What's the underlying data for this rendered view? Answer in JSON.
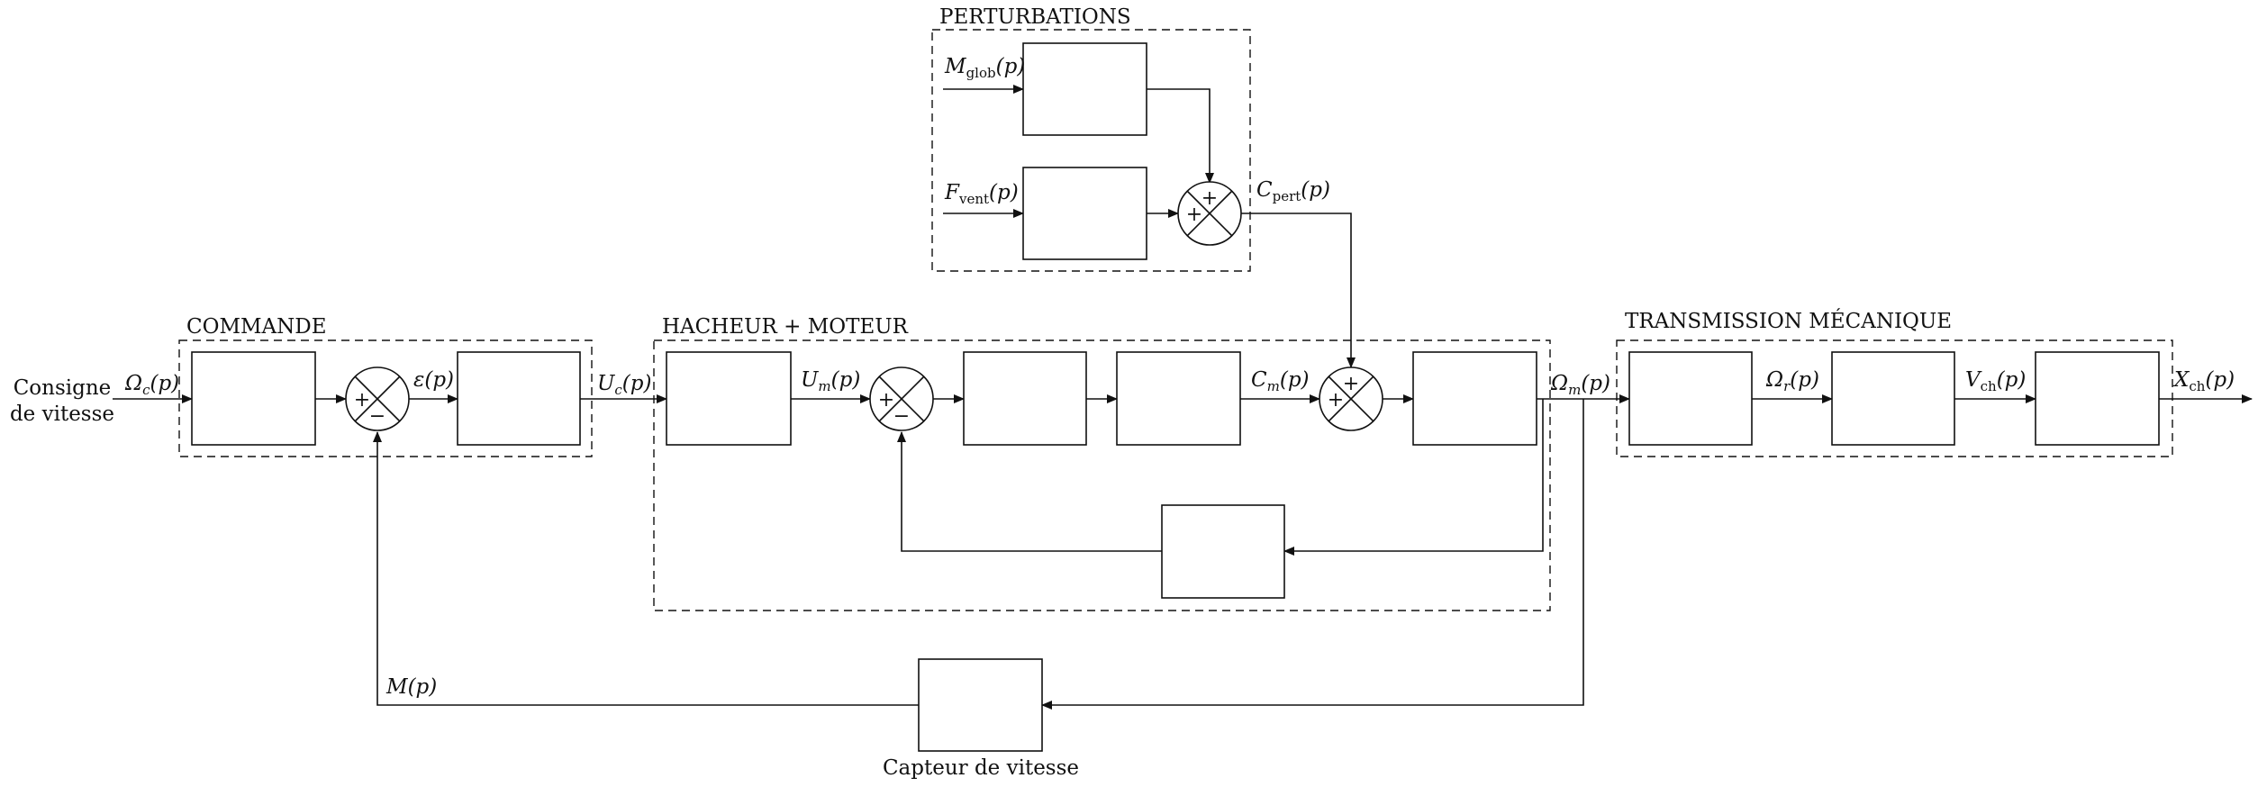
{
  "groups": {
    "perturbations": "PERTURBATIONS",
    "commande": "COMMANDE",
    "hacheur": "HACHEUR + MOTEUR",
    "transmission": "TRANSMISSION MÉCANIQUE"
  },
  "labels": {
    "consigne_line1": "Consigne",
    "consigne_line2": "de vitesse",
    "capteur": "Capteur de vitesse"
  },
  "signals": {
    "omega_c": {
      "main": "Ω",
      "sub": "c",
      "arg": "(p)"
    },
    "epsilon": {
      "main": "ε",
      "sub": "",
      "arg": "(p)"
    },
    "u_c": {
      "main": "U",
      "sub": "c",
      "arg": "(p)"
    },
    "u_m": {
      "main": "U",
      "sub": "m",
      "arg": "(p)"
    },
    "c_m": {
      "main": "C",
      "sub": "m",
      "arg": "(p)"
    },
    "omega_m": {
      "main": "Ω",
      "sub": "m",
      "arg": "(p)"
    },
    "omega_r": {
      "main": "Ω",
      "sub": "r",
      "arg": "(p)"
    },
    "v_ch": {
      "main": "V",
      "sub": "ch",
      "arg": "(p)"
    },
    "x_ch": {
      "main": "X",
      "sub": "ch",
      "arg": "(p)"
    },
    "m": {
      "main": "M",
      "sub": "",
      "arg": "(p)"
    },
    "m_glob": {
      "main": "M",
      "sub": "glob",
      "arg": "(p)"
    },
    "f_vent": {
      "main": "F",
      "sub": "vent",
      "arg": "(p)"
    },
    "c_pert": {
      "main": "C",
      "sub": "pert",
      "arg": "(p)"
    }
  },
  "summers": {
    "s1": {
      "left": "+",
      "bottom": "−"
    },
    "s2": {
      "left": "+",
      "bottom": "−"
    },
    "s3": {
      "top": "+",
      "left": "+"
    },
    "s4": {
      "top": "+",
      "left": "+"
    }
  }
}
